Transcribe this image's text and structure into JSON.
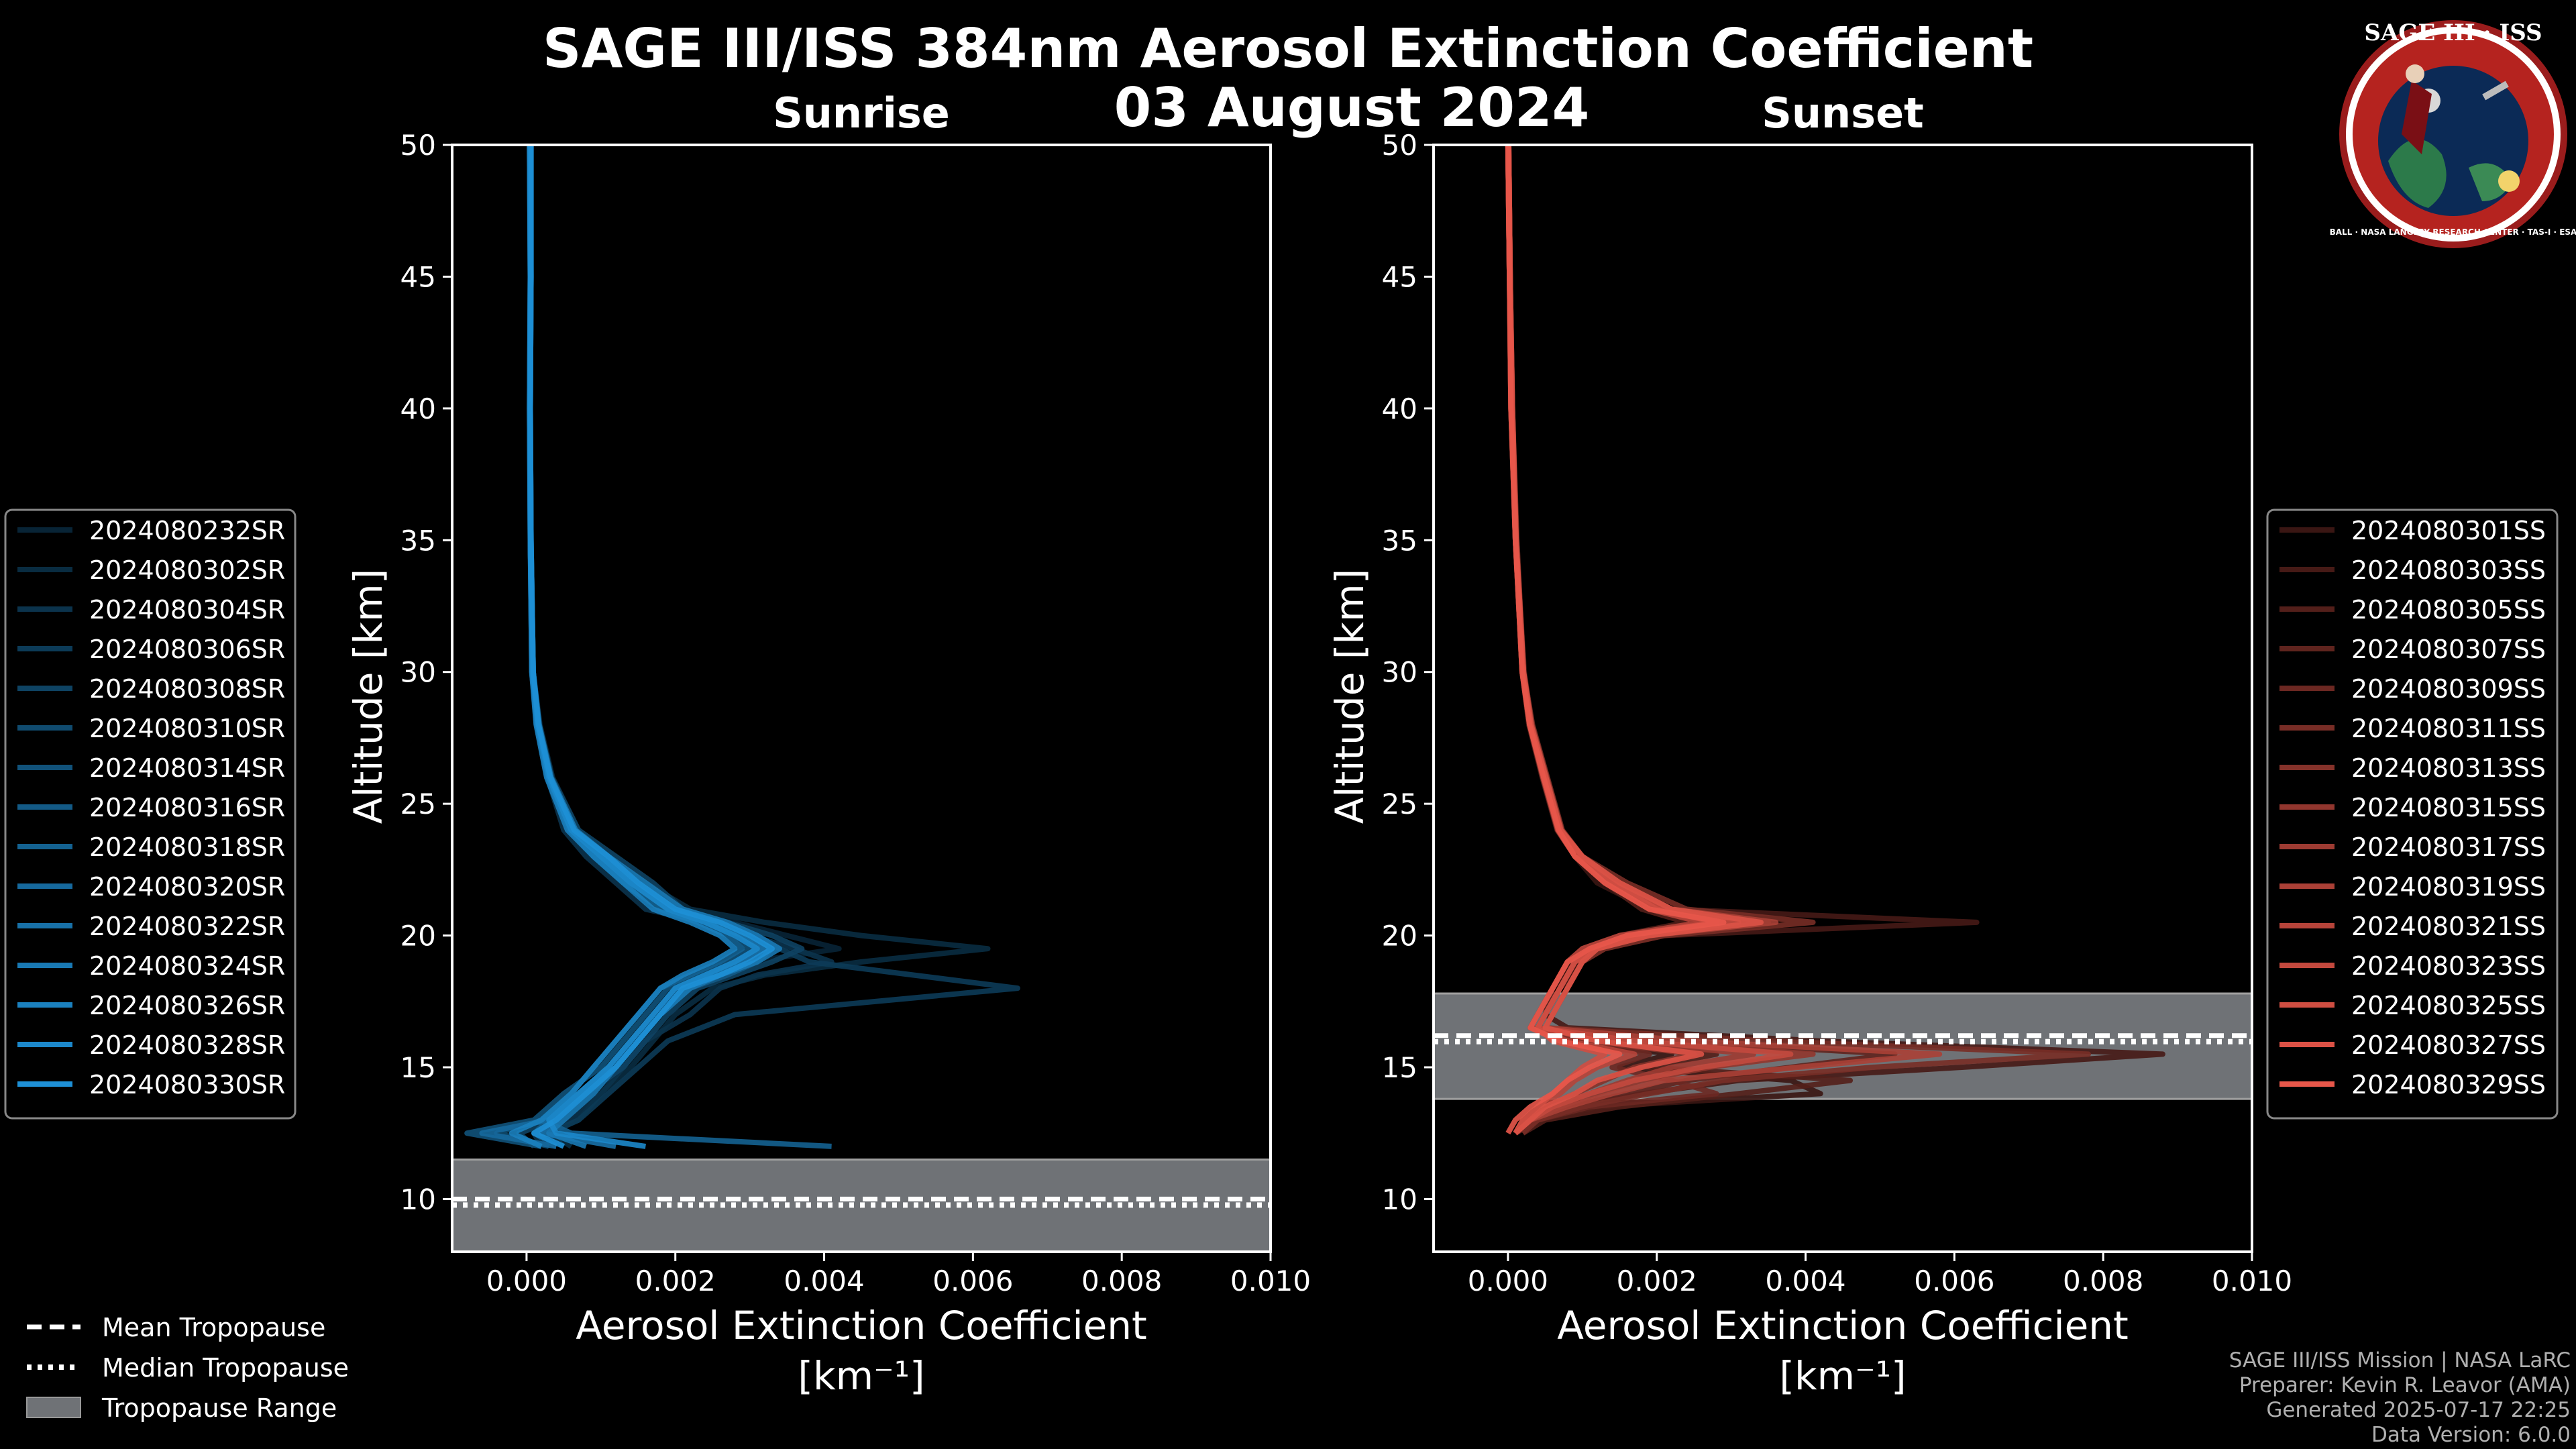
{
  "title": "SAGE III/ISS 384nm Aerosol Extinction Coefficient",
  "date": "03 August 2024",
  "badge": {
    "top": "SAGE III · ISS",
    "ring": "BALL · NASA LANGLEY RESEARCH CENTER · TAS-I · ESA"
  },
  "chart_data": [
    {
      "type": "line",
      "title": "Sunrise",
      "xlabel": "Aerosol Extinction Coefficient",
      "xunits": "[km⁻¹]",
      "ylabel": "Altitude [km]",
      "xlim": [
        -0.001,
        0.01
      ],
      "ylim": [
        8,
        50
      ],
      "xticks": [
        "0.000",
        "0.002",
        "0.004",
        "0.006",
        "0.008",
        "0.010"
      ],
      "yticks": [
        "10",
        "15",
        "20",
        "25",
        "30",
        "35",
        "40",
        "45",
        "50"
      ],
      "tropopause": {
        "mean_km": 9.9,
        "median_km": 9.9,
        "range_km": [
          8,
          11.5
        ]
      },
      "color": "#1e90d6",
      "series": [
        "2024080232SR",
        "2024080302SR",
        "2024080304SR",
        "2024080306SR",
        "2024080308SR",
        "2024080310SR",
        "2024080314SR",
        "2024080316SR",
        "2024080318SR",
        "2024080320SR",
        "2024080322SR",
        "2024080324SR",
        "2024080326SR",
        "2024080328SR",
        "2024080330SR"
      ],
      "profile_km": [
        50,
        45,
        40,
        35,
        30,
        28,
        26,
        24,
        23,
        22,
        21,
        20.5,
        20,
        19.5,
        19,
        18.5,
        18,
        17,
        16,
        15,
        14,
        13,
        12.5,
        12
      ],
      "profiles": [
        [
          5e-05,
          5e-05,
          5e-05,
          5e-05,
          8e-05,
          0.00015,
          0.0003,
          0.0006,
          0.0009,
          0.0013,
          0.0018,
          0.0028,
          0.0035,
          0.0042,
          0.003,
          0.0025,
          0.002,
          0.0018,
          0.0015,
          0.0012,
          0.0009,
          0.0005,
          0.0002,
          0.0004
        ],
        [
          6e-05,
          6e-05,
          5e-05,
          6e-05,
          9e-05,
          0.00018,
          0.00035,
          0.0007,
          0.0011,
          0.0016,
          0.0022,
          0.0032,
          0.0045,
          0.0062,
          0.0045,
          0.0032,
          0.0025,
          0.002,
          0.0017,
          0.0014,
          0.001,
          0.0007,
          0.0003,
          0.0006
        ],
        [
          4e-05,
          5e-05,
          4e-05,
          5e-05,
          7e-05,
          0.00013,
          0.00028,
          0.0005,
          0.0008,
          0.0012,
          0.0016,
          0.0024,
          0.003,
          0.0036,
          0.0041,
          0.0031,
          0.0026,
          0.0022,
          0.0016,
          0.0013,
          0.001,
          0.0006,
          0.0001,
          0.0002
        ],
        [
          5e-05,
          5e-05,
          5e-05,
          5e-05,
          8e-05,
          0.00016,
          0.00032,
          0.00065,
          0.001,
          0.0015,
          0.002,
          0.0026,
          0.0031,
          0.0034,
          0.0038,
          0.0052,
          0.0066,
          0.0028,
          0.0019,
          0.0015,
          0.0011,
          0.0007,
          0.0003,
          0.0005
        ],
        [
          6e-05,
          5e-05,
          5e-05,
          6e-05,
          9e-05,
          0.00017,
          0.00034,
          0.0007,
          0.0012,
          0.0017,
          0.0021,
          0.0027,
          0.0033,
          0.0037,
          0.0033,
          0.0028,
          0.0023,
          0.0019,
          0.0016,
          0.0013,
          0.0008,
          0.0004,
          -0.0001,
          0.0001
        ],
        [
          5e-05,
          6e-05,
          5e-05,
          5e-05,
          8e-05,
          0.00014,
          0.0003,
          0.0006,
          0.0009,
          0.0014,
          0.0019,
          0.0025,
          0.0029,
          0.0032,
          0.0029,
          0.0024,
          0.002,
          0.0017,
          0.0014,
          0.0011,
          0.0007,
          0.0002,
          -0.0004,
          0.0003
        ],
        [
          5e-05,
          5e-05,
          5e-05,
          5e-05,
          8e-05,
          0.00015,
          0.0003,
          0.0006,
          0.001,
          0.0014,
          0.0019,
          0.0024,
          0.0028,
          0.003,
          0.0027,
          0.0023,
          0.0019,
          0.0016,
          0.0013,
          0.001,
          0.0005,
          0.0001,
          -0.0008,
          0.0002
        ],
        [
          6e-05,
          6e-05,
          5e-05,
          6e-05,
          9e-05,
          0.00016,
          0.00033,
          0.00066,
          0.0011,
          0.0015,
          0.002,
          0.0026,
          0.003,
          0.0033,
          0.0031,
          0.0027,
          0.0022,
          0.0018,
          0.0015,
          0.0012,
          0.0008,
          0.0003,
          0.0001,
          0.0004
        ],
        [
          4e-05,
          5e-05,
          4e-05,
          5e-05,
          7e-05,
          0.00014,
          0.00029,
          0.00058,
          0.0009,
          0.0013,
          0.0018,
          0.0023,
          0.0027,
          0.0029,
          0.0026,
          0.0022,
          0.0018,
          0.0015,
          0.0012,
          0.0009,
          0.0006,
          0.0002,
          0.0006,
          0.0041
        ],
        [
          5e-05,
          5e-05,
          5e-05,
          5e-05,
          8e-05,
          0.00015,
          0.0003,
          0.0006,
          0.001,
          0.0014,
          0.0019,
          0.0024,
          0.0029,
          0.0031,
          0.0028,
          0.0024,
          0.002,
          0.0017,
          0.0014,
          0.0011,
          0.0007,
          0.0003,
          -0.0006,
          0.0004
        ],
        [
          5e-05,
          5e-05,
          5e-05,
          5e-05,
          8e-05,
          0.00016,
          0.00031,
          0.00062,
          0.001,
          0.0015,
          0.002,
          0.0025,
          0.0029,
          0.0032,
          0.0029,
          0.0025,
          0.0021,
          0.0018,
          0.0015,
          0.0012,
          0.0008,
          0.0004,
          0.0002,
          0.0012
        ],
        [
          5e-05,
          6e-05,
          5e-05,
          6e-05,
          9e-05,
          0.00017,
          0.00033,
          0.00066,
          0.0011,
          0.0016,
          0.0021,
          0.0027,
          0.0031,
          0.0034,
          0.0031,
          0.0026,
          0.0022,
          0.0018,
          0.0015,
          0.0012,
          0.0009,
          0.0005,
          0.0003,
          0.0008
        ],
        [
          4e-05,
          5e-05,
          4e-05,
          5e-05,
          7e-05,
          0.00013,
          0.00027,
          0.00055,
          0.0009,
          0.0013,
          0.0017,
          0.0022,
          0.0026,
          0.0028,
          0.0025,
          0.0021,
          0.0018,
          0.0015,
          0.0012,
          0.0009,
          0.0006,
          0.0002,
          -0.0002,
          0.0002
        ],
        [
          5e-05,
          5e-05,
          5e-05,
          5e-05,
          8e-05,
          0.00015,
          0.0003,
          0.0006,
          0.001,
          0.0014,
          0.0019,
          0.0024,
          0.0028,
          0.0031,
          0.0028,
          0.0024,
          0.002,
          0.0017,
          0.0014,
          0.0011,
          0.0007,
          0.0003,
          0.0004,
          0.0016
        ],
        [
          6e-05,
          6e-05,
          5e-05,
          6e-05,
          9e-05,
          0.00016,
          0.00032,
          0.00064,
          0.0011,
          0.0015,
          0.002,
          0.0026,
          0.003,
          0.0033,
          0.003,
          0.0026,
          0.0021,
          0.0018,
          0.0015,
          0.0012,
          0.0008,
          0.0004,
          0.0001,
          0.0005
        ]
      ]
    },
    {
      "type": "line",
      "title": "Sunset",
      "xlabel": "Aerosol Extinction Coefficient",
      "xunits": "[km⁻¹]",
      "ylabel": "Altitude [km]",
      "xlim": [
        -0.001,
        0.01
      ],
      "ylim": [
        8,
        50
      ],
      "xticks": [
        "0.000",
        "0.002",
        "0.004",
        "0.006",
        "0.008",
        "0.010"
      ],
      "yticks": [
        "10",
        "15",
        "20",
        "25",
        "30",
        "35",
        "40",
        "45",
        "50"
      ],
      "tropopause": {
        "mean_km": 16.1,
        "median_km": 16.1,
        "range_km": [
          13.8,
          17.8
        ]
      },
      "color": "#e8574a",
      "series": [
        "2024080301SS",
        "2024080303SS",
        "2024080305SS",
        "2024080307SS",
        "2024080309SS",
        "2024080311SS",
        "2024080313SS",
        "2024080315SS",
        "2024080317SS",
        "2024080319SS",
        "2024080321SS",
        "2024080323SS",
        "2024080325SS",
        "2024080327SS",
        "2024080329SS"
      ],
      "profile_km": [
        50,
        45,
        40,
        35,
        30,
        28,
        26,
        24,
        23,
        22,
        21,
        20.5,
        20,
        19.5,
        19,
        18,
        17,
        16.5,
        16,
        15.5,
        15,
        14.5,
        14,
        13.5,
        13,
        12.5
      ],
      "profiles": [
        [
          0.0,
          2e-05,
          5e-05,
          0.0001,
          0.0002,
          0.0003,
          0.0005,
          0.0007,
          0.0009,
          0.0012,
          0.0019,
          0.0028,
          0.0016,
          0.0011,
          0.0009,
          0.0006,
          0.0004,
          0.0003,
          0.0008,
          0.0022,
          0.0015,
          0.0038,
          0.0042,
          0.0012,
          0.0004,
          0.0001
        ],
        [
          1e-05,
          3e-05,
          6e-05,
          0.00011,
          0.00022,
          0.00032,
          0.00052,
          0.00072,
          0.001,
          0.0014,
          0.0022,
          0.0063,
          0.0021,
          0.0013,
          0.001,
          0.0007,
          0.0005,
          0.0008,
          0.0042,
          0.0088,
          0.0061,
          0.0031,
          0.0018,
          0.0009,
          0.0003,
          0.0001
        ],
        [
          0.0,
          2e-05,
          4e-05,
          0.0001,
          0.00019,
          0.00028,
          0.00046,
          0.00066,
          0.0009,
          0.0013,
          0.0018,
          0.0024,
          0.0015,
          0.001,
          0.0008,
          0.0006,
          0.0005,
          0.0004,
          0.0012,
          0.0028,
          0.0019,
          0.0046,
          0.0031,
          0.0015,
          0.0005,
          0.0002
        ],
        [
          1e-05,
          3e-05,
          5e-05,
          0.00011,
          0.0002,
          0.0003,
          0.0005,
          0.0007,
          0.001,
          0.0015,
          0.0021,
          0.0035,
          0.0018,
          0.0012,
          0.0009,
          0.0007,
          0.0005,
          0.0004,
          0.0021,
          0.0052,
          0.0038,
          0.0024,
          0.0016,
          0.0008,
          0.0003,
          0.0001
        ],
        [
          0.0,
          2e-05,
          5e-05,
          0.0001,
          0.0002,
          0.00031,
          0.00049,
          0.00069,
          0.0009,
          0.0014,
          0.002,
          0.0031,
          0.0017,
          0.0011,
          0.0009,
          0.0007,
          0.0005,
          0.0004,
          0.0009,
          0.0019,
          0.0014,
          0.0022,
          0.0028,
          0.0011,
          0.0004,
          0.0001
        ],
        [
          1e-05,
          3e-05,
          6e-05,
          0.00012,
          0.00021,
          0.00033,
          0.00053,
          0.00073,
          0.001,
          0.0016,
          0.0024,
          0.0041,
          0.0021,
          0.0013,
          0.001,
          0.0008,
          0.0006,
          0.0005,
          0.0035,
          0.0078,
          0.0049,
          0.0029,
          0.0019,
          0.001,
          0.0004,
          0.0002
        ],
        [
          0.0,
          2e-05,
          4e-05,
          0.0001,
          0.00019,
          0.00029,
          0.00047,
          0.00067,
          0.0009,
          0.0013,
          0.0019,
          0.0027,
          0.0016,
          0.0011,
          0.0008,
          0.0006,
          0.0004,
          0.0003,
          0.0011,
          0.0025,
          0.0017,
          0.0013,
          0.0009,
          0.0005,
          0.0002,
          0.0001
        ],
        [
          1e-05,
          3e-05,
          5e-05,
          0.00011,
          0.0002,
          0.0003,
          0.0005,
          0.0007,
          0.001,
          0.0015,
          0.0021,
          0.0033,
          0.0018,
          0.0012,
          0.0009,
          0.0007,
          0.0005,
          0.0004,
          0.0019,
          0.0041,
          0.0027,
          0.0018,
          0.0012,
          0.0007,
          0.0003,
          0.0001
        ],
        [
          0.0,
          2e-05,
          5e-05,
          0.0001,
          0.0002,
          0.0003,
          0.00048,
          0.00068,
          0.0009,
          0.0014,
          0.002,
          0.0029,
          0.0017,
          0.0011,
          0.0009,
          0.0007,
          0.0005,
          0.0004,
          0.0014,
          0.0033,
          0.0022,
          0.0016,
          0.0011,
          0.0006,
          0.0002,
          0.0001
        ],
        [
          1e-05,
          3e-05,
          6e-05,
          0.00011,
          0.00021,
          0.00032,
          0.00052,
          0.00072,
          0.001,
          0.0015,
          0.0022,
          0.0036,
          0.0019,
          0.0012,
          0.001,
          0.0008,
          0.0006,
          0.0005,
          0.0024,
          0.0058,
          0.0039,
          0.0021,
          0.0014,
          0.0008,
          0.0003,
          0.0001
        ],
        [
          0.0,
          2e-05,
          4e-05,
          0.0001,
          0.00019,
          0.00029,
          0.00047,
          0.00067,
          0.0009,
          0.0013,
          0.0019,
          0.0026,
          0.0015,
          0.001,
          0.0008,
          0.0006,
          0.0004,
          0.0003,
          0.0008,
          0.0017,
          0.0012,
          0.0009,
          0.0007,
          0.0004,
          0.0002,
          0.0001
        ],
        [
          1e-05,
          3e-05,
          5e-05,
          0.00011,
          0.0002,
          0.0003,
          0.0005,
          0.0007,
          0.001,
          0.0014,
          0.0021,
          0.0031,
          0.0018,
          0.0012,
          0.0009,
          0.0007,
          0.0005,
          0.0004,
          0.0017,
          0.0038,
          0.0026,
          0.0017,
          0.0011,
          0.0006,
          0.0003,
          0.0001
        ],
        [
          0.0,
          2e-05,
          5e-05,
          0.0001,
          0.0002,
          0.0003,
          0.00049,
          0.00069,
          0.0009,
          0.0014,
          0.002,
          0.0028,
          0.0016,
          0.0011,
          0.0009,
          0.0007,
          0.0005,
          0.0004,
          0.0006,
          0.0013,
          0.001,
          0.0008,
          0.0006,
          0.0004,
          0.0002,
          0.0001
        ],
        [
          1e-05,
          3e-05,
          6e-05,
          0.00011,
          0.00021,
          0.00031,
          0.00051,
          0.00071,
          0.001,
          0.0015,
          0.0022,
          0.0034,
          0.0019,
          0.0012,
          0.001,
          0.0008,
          0.0006,
          0.0005,
          0.0012,
          0.0026,
          0.0018,
          0.0012,
          0.0009,
          0.0005,
          0.0003,
          0.0001
        ],
        [
          0.0,
          2e-05,
          4e-05,
          0.0001,
          0.00019,
          0.00029,
          0.00048,
          0.00068,
          0.0009,
          0.0013,
          0.0019,
          0.0029,
          0.0016,
          0.0011,
          0.0008,
          0.0006,
          0.0004,
          0.0003,
          0.0007,
          0.0015,
          0.0011,
          0.0008,
          0.0006,
          0.0003,
          0.0001,
          0.0
        ]
      ]
    }
  ],
  "legend_bottom": [
    "Mean Tropopause",
    "Median Tropopause",
    "Tropopause Range"
  ],
  "credits": [
    "SAGE III/ISS Mission | NASA LaRC",
    "Preparer: Kevin R. Leavor (AMA)",
    "Generated 2025-07-17 22:25",
    "Data Version: 6.0.0"
  ]
}
